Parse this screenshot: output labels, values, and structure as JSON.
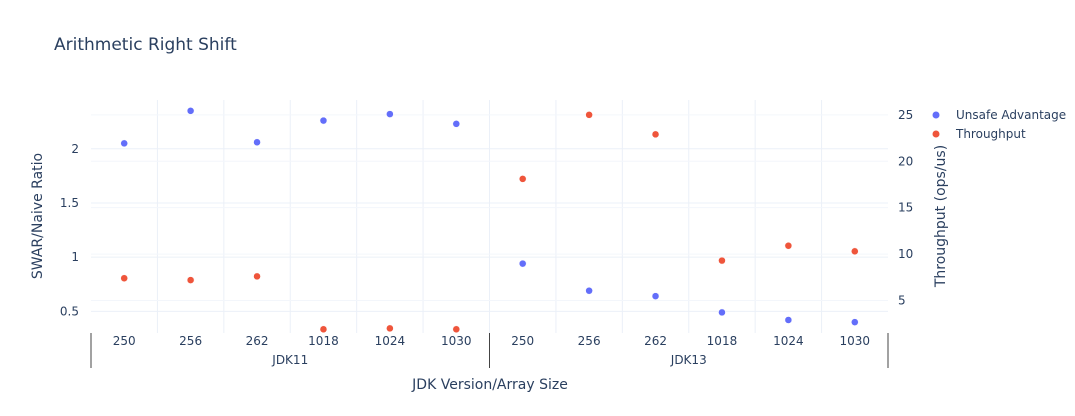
{
  "chart_data": {
    "type": "scatter",
    "title": "Arithmetic Right Shift",
    "xlabel": "JDK Version/Array Size",
    "ylabel": "SWAR/Naive Ratio",
    "y2label": "Throughput (ops/us)",
    "groups": [
      {
        "name": "JDK11",
        "categories": [
          "250",
          "256",
          "262",
          "1018",
          "1024",
          "1030"
        ]
      },
      {
        "name": "JDK13",
        "categories": [
          "250",
          "256",
          "262",
          "1018",
          "1024",
          "1030"
        ]
      }
    ],
    "ylim": [
      0.3,
      2.45
    ],
    "yticks": [
      0.5,
      1,
      1.5,
      2
    ],
    "y2lim": [
      1.5,
      26.6
    ],
    "y2ticks": [
      5,
      10,
      15,
      20,
      25
    ],
    "grid": true,
    "legend_position": "top-right",
    "series": [
      {
        "name": "Unsafe Advantage",
        "axis": "y",
        "color": "#636efa",
        "values": [
          2.05,
          2.35,
          2.06,
          2.26,
          2.32,
          2.23,
          0.94,
          0.69,
          0.64,
          0.49,
          0.42,
          0.4
        ]
      },
      {
        "name": "Throughput",
        "axis": "y2",
        "color": "#ef553b",
        "values": [
          7.4,
          7.2,
          7.6,
          1.9,
          2.0,
          1.9,
          18.1,
          25.0,
          22.9,
          9.3,
          10.9,
          10.3
        ]
      }
    ]
  }
}
